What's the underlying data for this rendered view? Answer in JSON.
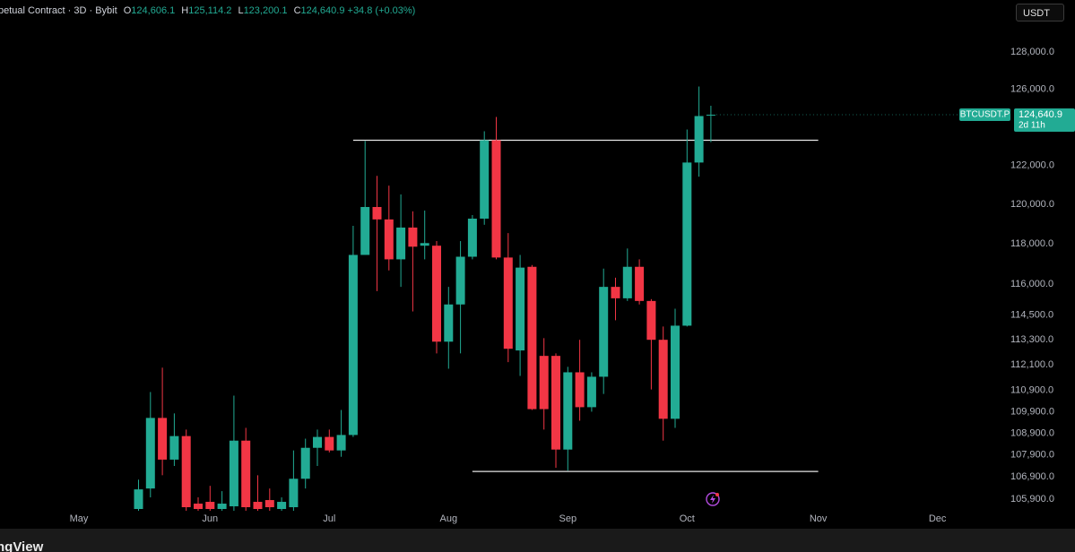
{
  "header": {
    "symbol": "petual Contract · 3D · Bybit",
    "ohlc": [
      {
        "key": "O",
        "value": "124,606.1"
      },
      {
        "key": "H",
        "value": "125,114.2"
      },
      {
        "key": "L",
        "value": "123,200.1"
      },
      {
        "key": "C",
        "value": "124,640.9"
      }
    ],
    "change": "+34.8 (+0.03%)"
  },
  "currency_button": "USDT",
  "price_tag": {
    "symbol": "BTCUSDT.P",
    "price": "124,640.9",
    "countdown": "2d 11h"
  },
  "footer": "ngView",
  "chart_data": {
    "type": "candlestick",
    "log_scale": true,
    "grid": false,
    "up_color": "#22ab94",
    "down_color": "#f23645",
    "categories": [
      "May",
      null,
      null,
      null,
      null,
      null,
      null,
      null,
      null,
      null,
      null,
      "Jun",
      null,
      null,
      null,
      null,
      null,
      null,
      null,
      null,
      null,
      "Jul",
      null,
      null,
      null,
      null,
      null,
      null,
      null,
      null,
      null,
      "Aug",
      null,
      null,
      null,
      null,
      null,
      null,
      null,
      null,
      null,
      "Sep",
      null,
      null,
      null,
      null,
      null,
      null,
      null,
      null,
      null,
      "Oct",
      null,
      null,
      null,
      null,
      null,
      null,
      null,
      null,
      null,
      null,
      "Nov",
      null,
      null,
      null,
      null,
      null,
      null,
      null,
      null,
      null,
      "Dec"
    ],
    "open": [
      null,
      null,
      null,
      null,
      null,
      105460,
      106380,
      109610,
      107690,
      108770,
      105700,
      105780,
      105460,
      105580,
      108560,
      105780,
      105860,
      105460,
      105540,
      106820,
      108230,
      108730,
      108110,
      108820,
      117450,
      119860,
      119230,
      117230,
      118820,
      117910,
      117910,
      113210,
      115010,
      117360,
      119270,
      123300,
      117320,
      112790,
      116860,
      112530,
      112530,
      108150,
      111750,
      110110,
      111540,
      115870,
      115310,
      116860,
      115180,
      113300,
      109570,
      113980,
      122140,
      124606.1,
      null,
      null,
      null,
      null,
      null,
      null,
      null,
      null,
      null,
      null,
      null,
      null,
      null,
      null,
      null,
      null,
      null,
      null,
      null
    ],
    "high": [
      null,
      null,
      null,
      null,
      null,
      106780,
      110820,
      111970,
      109820,
      109070,
      105980,
      106500,
      106260,
      110650,
      109150,
      106980,
      106380,
      105980,
      108110,
      108650,
      109070,
      109070,
      109980,
      118910,
      123260,
      121450,
      120950,
      120500,
      119640,
      119680,
      118140,
      115870,
      118140,
      119450,
      123770,
      124520,
      118540,
      117450,
      116950,
      113380,
      112650,
      112010,
      113300,
      111750,
      116770,
      116320,
      117770,
      117230,
      115270,
      113940,
      114800,
      123860,
      126140,
      125114.2,
      null,
      null,
      null,
      null,
      null,
      null,
      null,
      null,
      null,
      null,
      null,
      null,
      null,
      null,
      null,
      null,
      null,
      null,
      null
    ],
    "low": [
      null,
      null,
      null,
      null,
      null,
      105380,
      105980,
      106980,
      107400,
      105380,
      105380,
      105380,
      105380,
      105380,
      105380,
      105380,
      105380,
      105380,
      105380,
      106380,
      107400,
      108020,
      107820,
      108730,
      117450,
      115660,
      116680,
      115870,
      114670,
      117230,
      112650,
      111920,
      112650,
      117230,
      118960,
      117230,
      112230,
      111580,
      109980,
      109070,
      107320,
      107190,
      109480,
      109900,
      110730,
      114240,
      115180,
      115010,
      110940,
      108560,
      109150,
      113940,
      121410,
      123200.1,
      null,
      null,
      null,
      null,
      null,
      null,
      null,
      null,
      null,
      null,
      null,
      null,
      null,
      null,
      null,
      null,
      null,
      null,
      null
    ],
    "close": [
      null,
      null,
      null,
      null,
      null,
      106340,
      109610,
      107690,
      108770,
      105540,
      105460,
      105460,
      105700,
      108560,
      105540,
      105460,
      105540,
      105780,
      106820,
      108230,
      108730,
      108110,
      108820,
      117450,
      119860,
      119230,
      117230,
      118820,
      117860,
      118040,
      113210,
      115010,
      117360,
      119270,
      123300,
      117320,
      112870,
      116820,
      110020,
      110020,
      108150,
      111750,
      110110,
      111540,
      115870,
      115310,
      116860,
      115180,
      113300,
      109570,
      113980,
      122140,
      124570,
      124640.9,
      null,
      null,
      null,
      null,
      null,
      null,
      null,
      null,
      null,
      null,
      null,
      null,
      null,
      null,
      null,
      null,
      null,
      null,
      null
    ],
    "ylim": [
      105380,
      130850
    ],
    "yticks": [
      {
        "value": 128000,
        "label": "128,000.0"
      },
      {
        "value": 126000,
        "label": "126,000.0"
      },
      {
        "value": 122000,
        "label": "122,000.0"
      },
      {
        "value": 120000,
        "label": "120,000.0"
      },
      {
        "value": 118000,
        "label": "118,000.0"
      },
      {
        "value": 116000,
        "label": "116,000.0"
      },
      {
        "value": 114500,
        "label": "114,500.0"
      },
      {
        "value": 113300,
        "label": "113,300.0"
      },
      {
        "value": 112100,
        "label": "112,100.0"
      },
      {
        "value": 110900,
        "label": "110,900.0"
      },
      {
        "value": 109900,
        "label": "109,900.0"
      },
      {
        "value": 108900,
        "label": "108,900.0"
      },
      {
        "value": 107900,
        "label": "107,900.0"
      },
      {
        "value": 106900,
        "label": "106,900.0"
      },
      {
        "value": 105900,
        "label": "105,900.0"
      }
    ],
    "lines": [
      {
        "value": 123300,
        "from": 23,
        "to": 62
      },
      {
        "value": 107150,
        "from": 33,
        "to": 62
      }
    ]
  }
}
